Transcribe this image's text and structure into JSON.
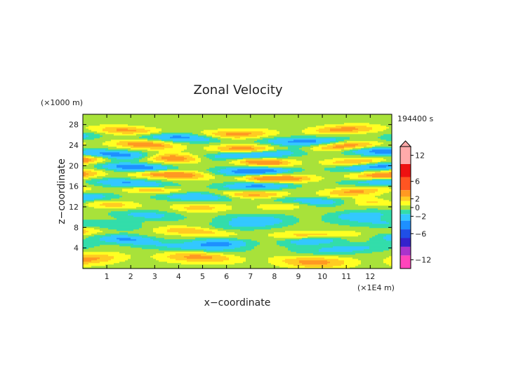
{
  "chart_data": {
    "type": "heatmap",
    "title": "Zonal Velocity",
    "xlabel": "x−coordinate",
    "ylabel": "z−coordinate",
    "x_unit": "(×1E4 m)",
    "y_unit": "(×1000 m)",
    "time_label": "194400 s",
    "xlim": [
      0,
      12.9
    ],
    "ylim": [
      0,
      30
    ],
    "x_ticks": [
      1,
      2,
      3,
      4,
      5,
      6,
      7,
      8,
      9,
      10,
      11,
      12
    ],
    "y_ticks": [
      4,
      8,
      12,
      16,
      20,
      24,
      28
    ],
    "colorbar": {
      "range": [
        -14,
        14
      ],
      "tick_values": [
        12,
        6,
        2,
        0,
        -2,
        -6,
        -12
      ],
      "tick_labels": [
        "12",
        "6",
        "2",
        "0",
        "−2",
        "−6",
        "−12"
      ],
      "levels": [
        {
          "lo": -14,
          "hi": -11,
          "color": "#ff44bb"
        },
        {
          "lo": -11,
          "hi": -9,
          "color": "#aa33cc"
        },
        {
          "lo": -9,
          "hi": -7,
          "color": "#3322cc"
        },
        {
          "lo": -7,
          "hi": -5,
          "color": "#1f4fe6"
        },
        {
          "lo": -5,
          "hi": -3,
          "color": "#1e90ff"
        },
        {
          "lo": -3,
          "hi": -1.5,
          "color": "#33c8ff"
        },
        {
          "lo": -1.5,
          "hi": -0.5,
          "color": "#33ddaa"
        },
        {
          "lo": -0.5,
          "hi": 0.5,
          "color": "#a8e23a"
        },
        {
          "lo": 0.5,
          "hi": 1.5,
          "color": "#ffff22"
        },
        {
          "lo": 1.5,
          "hi": 2.5,
          "color": "#ffcc22"
        },
        {
          "lo": 2.5,
          "hi": 4,
          "color": "#ff9922"
        },
        {
          "lo": 4,
          "hi": 7,
          "color": "#ff5522"
        },
        {
          "lo": 7,
          "hi": 10,
          "color": "#ee1111"
        },
        {
          "lo": 10,
          "hi": 14,
          "color": "#ffaaaa"
        }
      ]
    },
    "bands": [
      {
        "z": 1.8,
        "amp": 3.0,
        "w": 0.8,
        "k": 1.3,
        "ph": 0.0
      },
      {
        "z": 4.0,
        "amp": -2.0,
        "w": 0.7,
        "k": 1.0,
        "ph": 1.0
      },
      {
        "z": 5.5,
        "amp": -3.2,
        "w": 0.6,
        "k": 1.6,
        "ph": 2.0
      },
      {
        "z": 7.0,
        "amp": 2.5,
        "w": 0.6,
        "k": 1.2,
        "ph": 0.5
      },
      {
        "z": 8.5,
        "amp": -1.5,
        "w": 0.7,
        "k": 1.1,
        "ph": 3.0
      },
      {
        "z": 10.2,
        "amp": -2.0,
        "w": 0.7,
        "k": 1.4,
        "ph": 1.5
      },
      {
        "z": 12.4,
        "amp": 2.0,
        "w": 0.6,
        "k": 1.7,
        "ph": 2.5
      },
      {
        "z": 13.6,
        "amp": -3.0,
        "w": 0.6,
        "k": 1.3,
        "ph": 0.2
      },
      {
        "z": 15.0,
        "amp": 2.8,
        "w": 0.6,
        "k": 1.5,
        "ph": 1.1
      },
      {
        "z": 16.5,
        "amp": -3.5,
        "w": 0.6,
        "k": 1.2,
        "ph": 2.2
      },
      {
        "z": 18.0,
        "amp": 4.5,
        "w": 0.6,
        "k": 1.4,
        "ph": 0.7
      },
      {
        "z": 19.5,
        "amp": -4.5,
        "w": 0.6,
        "k": 1.3,
        "ph": 1.9
      },
      {
        "z": 21.0,
        "amp": 4.0,
        "w": 0.6,
        "k": 1.6,
        "ph": 0.3
      },
      {
        "z": 22.3,
        "amp": -4.0,
        "w": 0.6,
        "k": 1.1,
        "ph": 2.8
      },
      {
        "z": 23.8,
        "amp": 3.5,
        "w": 0.6,
        "k": 1.5,
        "ph": 1.4
      },
      {
        "z": 25.3,
        "amp": -3.5,
        "w": 0.6,
        "k": 1.2,
        "ph": 0.9
      },
      {
        "z": 26.7,
        "amp": 3.0,
        "w": 0.6,
        "k": 1.4,
        "ph": 2.1
      }
    ]
  }
}
